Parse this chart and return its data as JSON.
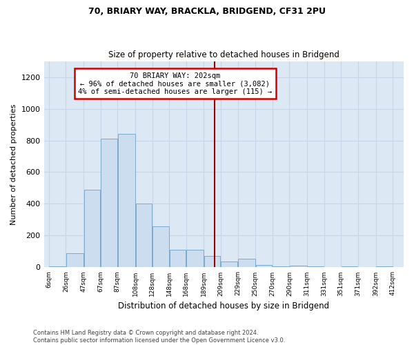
{
  "title1": "70, BRIARY WAY, BRACKLA, BRIDGEND, CF31 2PU",
  "title2": "Size of property relative to detached houses in Bridgend",
  "xlabel": "Distribution of detached houses by size in Bridgend",
  "ylabel": "Number of detached properties",
  "bar_color": "#ccddf0",
  "bar_edge_color": "#7aaace",
  "bar_left_edges": [
    6,
    26,
    47,
    67,
    87,
    108,
    128,
    148,
    168,
    189,
    209,
    229,
    250,
    270,
    290,
    311,
    331,
    351,
    371,
    392
  ],
  "bar_widths": [
    20,
    21,
    20,
    20,
    21,
    20,
    20,
    20,
    21,
    20,
    20,
    21,
    20,
    20,
    21,
    20,
    20,
    20,
    21,
    20
  ],
  "bar_heights": [
    5,
    90,
    490,
    810,
    840,
    400,
    260,
    110,
    110,
    70,
    35,
    55,
    15,
    5,
    10,
    5,
    0,
    5,
    0,
    5
  ],
  "tick_labels": [
    "6sqm",
    "26sqm",
    "47sqm",
    "67sqm",
    "87sqm",
    "108sqm",
    "128sqm",
    "148sqm",
    "168sqm",
    "189sqm",
    "209sqm",
    "229sqm",
    "250sqm",
    "270sqm",
    "290sqm",
    "311sqm",
    "331sqm",
    "351sqm",
    "371sqm",
    "392sqm",
    "412sqm"
  ],
  "tick_positions": [
    6,
    26,
    47,
    67,
    87,
    108,
    128,
    148,
    168,
    189,
    209,
    229,
    250,
    270,
    290,
    311,
    331,
    351,
    371,
    392,
    412
  ],
  "ylim": [
    0,
    1300
  ],
  "yticks": [
    0,
    200,
    400,
    600,
    800,
    1000,
    1200
  ],
  "xlim_left": 0,
  "xlim_right": 425,
  "vline_x": 202,
  "vline_color": "#990000",
  "annotation_text": "70 BRIARY WAY: 202sqm\n← 96% of detached houses are smaller (3,082)\n4% of semi-detached houses are larger (115) →",
  "annotation_box_color": "white",
  "annotation_box_edge_color": "#cc0000",
  "footer_text": "Contains HM Land Registry data © Crown copyright and database right 2024.\nContains public sector information licensed under the Open Government Licence v3.0.",
  "grid_color": "#c8d4e8",
  "background_color": "#dce8f4",
  "fig_width": 6.0,
  "fig_height": 5.0,
  "dpi": 100
}
